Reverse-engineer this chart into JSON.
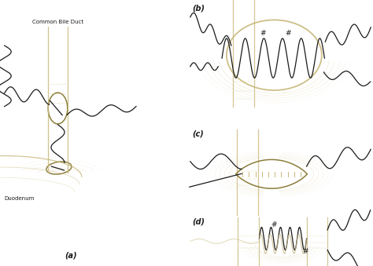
{
  "bg_color": "#ffffff",
  "olive": "#8B7D3A",
  "olive_light": "#C8B88A",
  "tan": "#C8B87A",
  "tan2": "#D4C896",
  "dark": "#1a1a1a",
  "label_a": "(a)",
  "label_b": "(b)",
  "label_c": "(c)",
  "label_d": "(d)",
  "text_cbd": "Common Bile Duct",
  "text_duo": "Duodenum"
}
